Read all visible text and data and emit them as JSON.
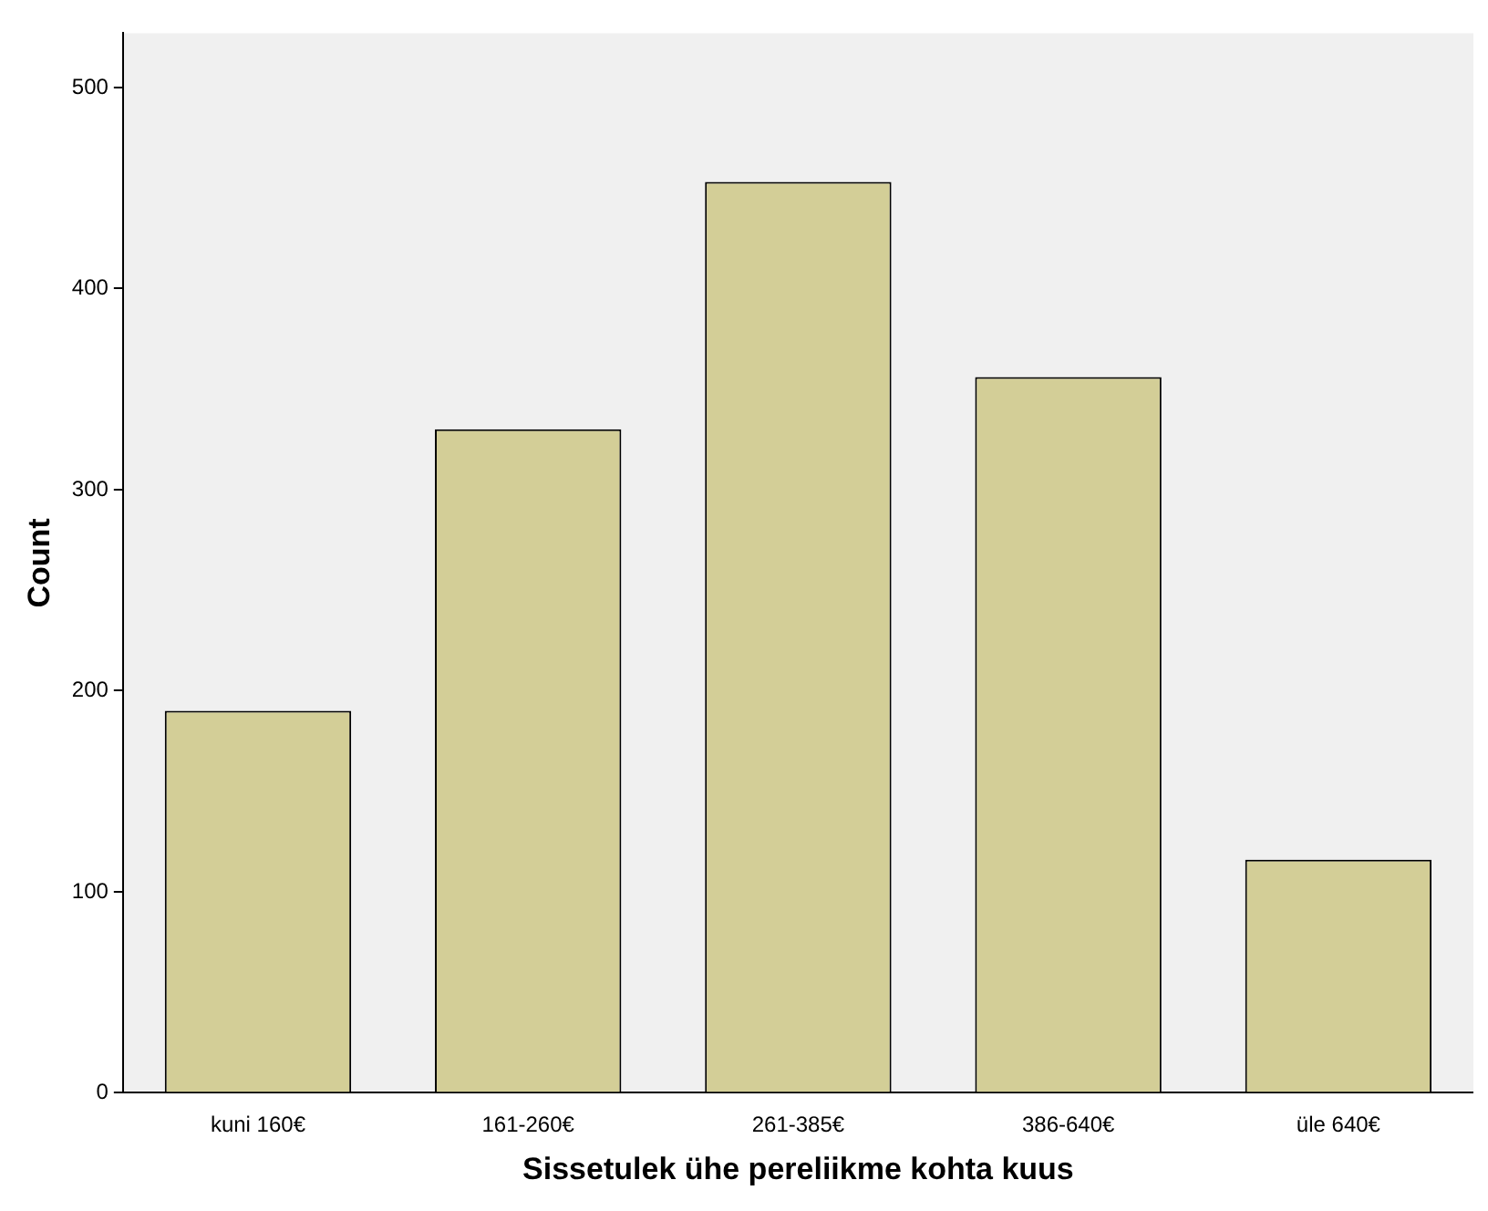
{
  "chart_data": {
    "type": "bar",
    "xlabel": "Sissetulek ühe pereliikme kohta kuus",
    "ylabel": "Count",
    "categories": [
      "kuni 160€",
      "161-260€",
      "261-385€",
      "386-640€",
      "üle 640€"
    ],
    "values": [
      190,
      330,
      453,
      356,
      116
    ],
    "color": "#d3ce97",
    "ylim": [
      0,
      527
    ],
    "yticks": [
      0,
      100,
      200,
      300,
      400,
      500
    ],
    "grid": false,
    "legend": false
  }
}
